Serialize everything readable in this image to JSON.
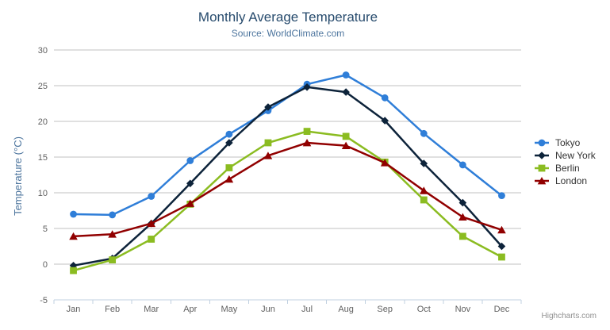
{
  "chart_data": {
    "type": "line",
    "title": "Monthly Average Temperature",
    "subtitle": "Source: WorldClimate.com",
    "categories": [
      "Jan",
      "Feb",
      "Mar",
      "Apr",
      "May",
      "Jun",
      "Jul",
      "Aug",
      "Sep",
      "Oct",
      "Nov",
      "Dec"
    ],
    "series": [
      {
        "name": "Tokyo",
        "color": "#2f7ed8",
        "marker": "circle",
        "values": [
          7.0,
          6.9,
          9.5,
          14.5,
          18.2,
          21.5,
          25.2,
          26.5,
          23.3,
          18.3,
          13.9,
          9.6
        ]
      },
      {
        "name": "New York",
        "color": "#0d233a",
        "marker": "diamond",
        "values": [
          -0.2,
          0.8,
          5.7,
          11.3,
          17.0,
          22.0,
          24.8,
          24.1,
          20.1,
          14.1,
          8.6,
          2.5
        ]
      },
      {
        "name": "Berlin",
        "color": "#8bbc21",
        "marker": "square",
        "values": [
          -0.9,
          0.6,
          3.5,
          8.4,
          13.5,
          17.0,
          18.6,
          17.9,
          14.3,
          9.0,
          3.9,
          1.0
        ]
      },
      {
        "name": "London",
        "color": "#910000",
        "marker": "triangle",
        "values": [
          3.9,
          4.2,
          5.7,
          8.5,
          11.9,
          15.2,
          17.0,
          16.6,
          14.2,
          10.3,
          6.6,
          4.8
        ]
      }
    ],
    "xlabel": "",
    "ylabel": "Temperature (°C)",
    "yticks": [
      30,
      25,
      20,
      15,
      10,
      5,
      0,
      -5
    ],
    "ylim": [
      -5,
      30
    ],
    "grid": true,
    "legend_position": "right"
  },
  "colors": {
    "title": "#274b6d",
    "subtitle": "#4d759e",
    "axis_labels": "#606060",
    "gridline": "#c0c0c0",
    "axis_line": "#c0d0e0",
    "legend_text": "#333333",
    "credits": "#909090",
    "menu_icon": "#666666"
  },
  "credits": {
    "label": "Highcharts.com"
  }
}
